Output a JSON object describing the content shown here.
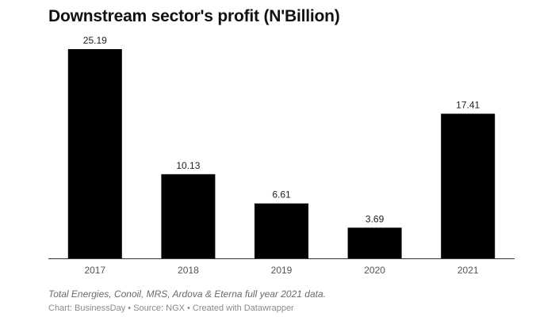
{
  "chart_data": {
    "type": "bar",
    "title": "Downstream sector's profit (N'Billion)",
    "categories": [
      "2017",
      "2018",
      "2019",
      "2020",
      "2021"
    ],
    "values": [
      25.19,
      10.13,
      6.61,
      3.69,
      17.41
    ],
    "value_labels": [
      "25.19",
      "10.13",
      "6.61",
      "3.69",
      "17.41"
    ],
    "xlabel": "",
    "ylabel": "",
    "ylim": [
      0,
      25.19
    ],
    "grid": false,
    "legend": "none",
    "bar_color": "#000000"
  },
  "notes": "Total Energies, Conoil, MRS, Ardova & Eterna full year 2021 data.",
  "credit": "Chart: BusinessDay • Source: NGX • Created with Datawrapper"
}
